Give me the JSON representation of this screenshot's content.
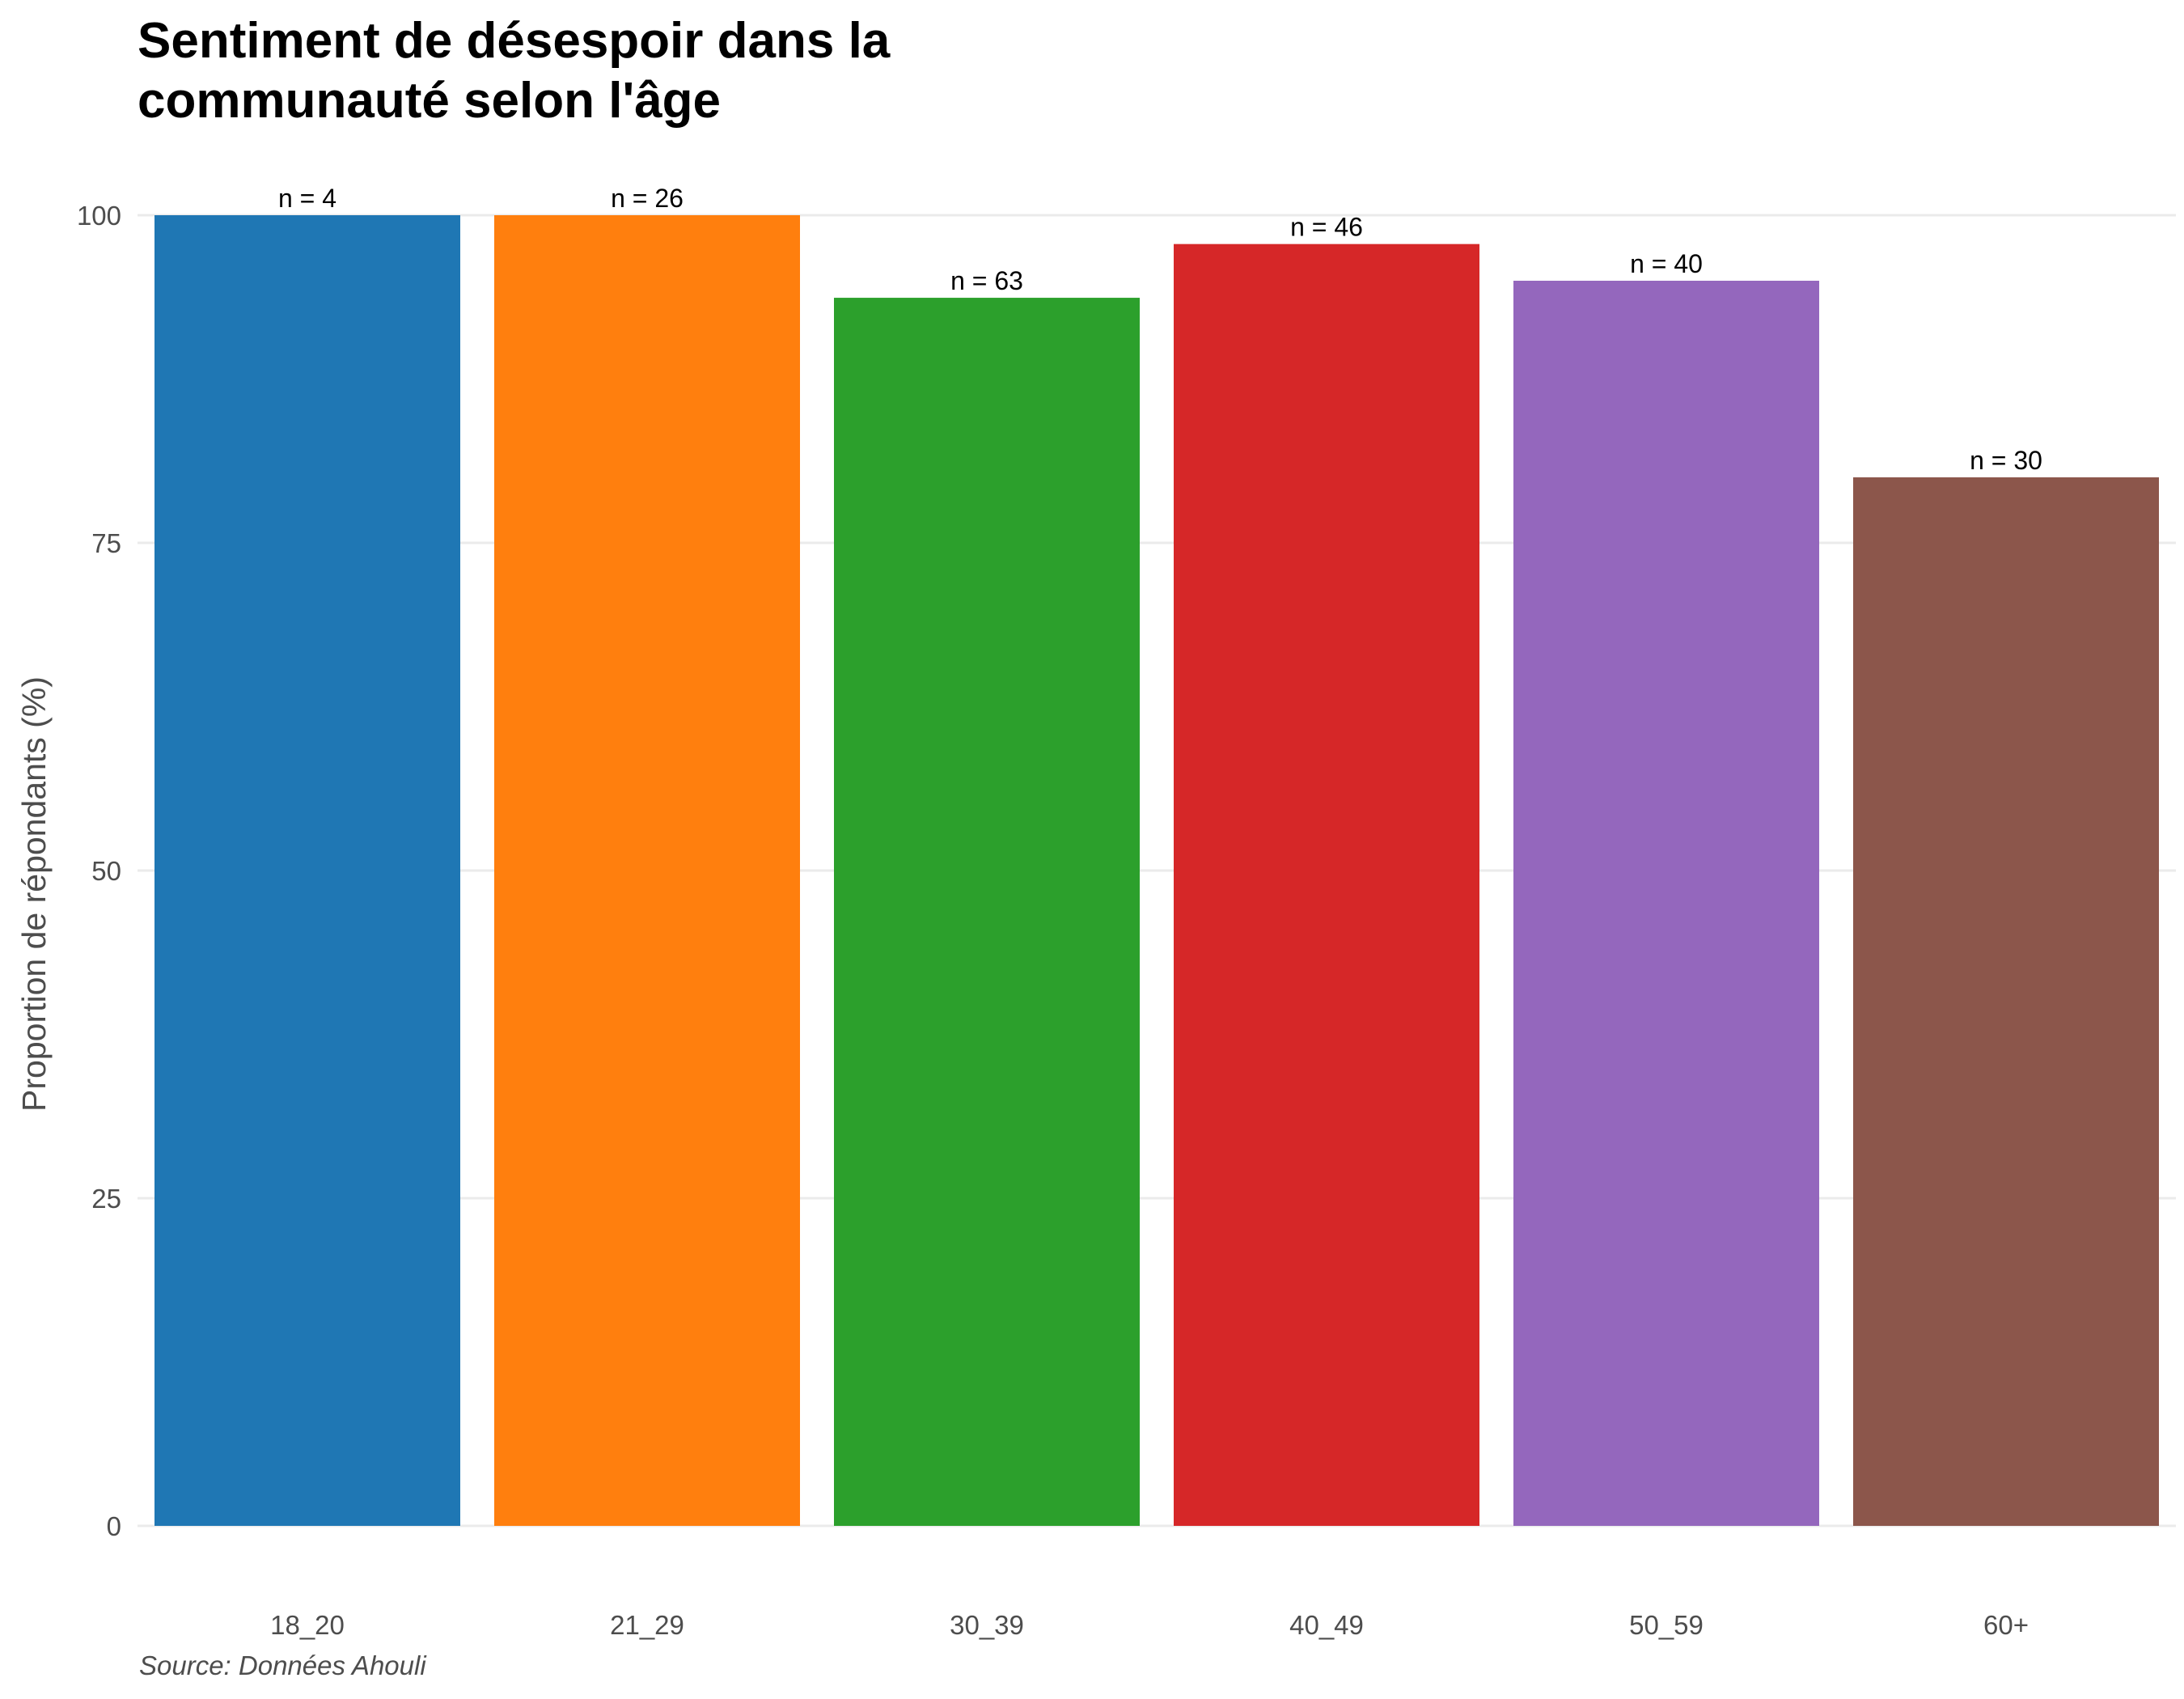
{
  "chart_data": {
    "type": "bar",
    "title_lines": [
      "Sentiment de désespoir dans la",
      "communauté selon l'âge"
    ],
    "xlabel": "",
    "ylabel": "Proportion de répondants (%)",
    "caption": "Source: Données Ahouli",
    "categories": [
      "18_20",
      "21_29",
      "30_39",
      "40_49",
      "50_59",
      "60+"
    ],
    "values": [
      100,
      100,
      93.7,
      97.8,
      95,
      80
    ],
    "labels": [
      "n = 4",
      "n = 26",
      "n = 63",
      "n = 46",
      "n = 40",
      "n = 30"
    ],
    "colors": [
      "#1f77b4",
      "#ff7f0e",
      "#2ca02c",
      "#d62728",
      "#9467bd",
      "#8c564b"
    ],
    "ylim": [
      0,
      100
    ],
    "yticks": [
      0,
      25,
      50,
      75,
      100
    ],
    "grid": true,
    "legend": "none"
  }
}
